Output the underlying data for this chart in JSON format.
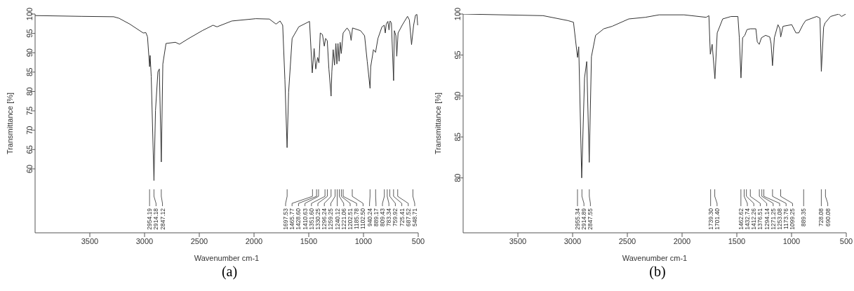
{
  "chart_data": [
    {
      "type": "line",
      "xlabel": "Wavenumber cm-1",
      "ylabel": "Transmittance [%]",
      "xlim": [
        4000,
        500
      ],
      "ylim": [
        43.5,
        100
      ],
      "xticks": [
        3500,
        3000,
        2500,
        2000,
        1500,
        1000,
        500
      ],
      "yticks": [
        60,
        65,
        70,
        75,
        80,
        85,
        90,
        95,
        100
      ],
      "color": "#333333",
      "x": [
        4000,
        3576,
        3282,
        3233,
        3135,
        3012,
        2988,
        2973,
        2954,
        2949,
        2939,
        2914,
        2900,
        2878,
        2865,
        2847,
        2833,
        2804,
        2718,
        2681,
        2596,
        2473,
        2375,
        2338,
        2203,
        1983,
        1860,
        1799,
        1762,
        1738,
        1718,
        1698,
        1684,
        1652,
        1591,
        1493,
        1468,
        1451,
        1436,
        1419,
        1407,
        1395,
        1375,
        1358,
        1346,
        1331,
        1316,
        1296,
        1289,
        1277,
        1265,
        1252,
        1243,
        1233,
        1223,
        1213,
        1203,
        1186,
        1150,
        1125,
        1113,
        1100,
        1027,
        990,
        966,
        940,
        934,
        909,
        890,
        868,
        831,
        811,
        801,
        792,
        777,
        767,
        757,
        745,
        725,
        718,
        704,
        696,
        684,
        647,
        598,
        581,
        561,
        542,
        525,
        512,
        505
      ],
      "values": [
        99.6,
        99.4,
        99.3,
        98.9,
        97.4,
        95.1,
        95.2,
        94.1,
        86.4,
        89.3,
        83.8,
        57,
        75.1,
        85.1,
        85.8,
        61.8,
        87.1,
        92.4,
        92.7,
        92.2,
        93.7,
        95.7,
        97.1,
        96.7,
        98.2,
        98.8,
        98.7,
        97.4,
        98.2,
        97.1,
        83.1,
        65.5,
        79.8,
        93.7,
        96.7,
        98.1,
        84.8,
        91.1,
        85.8,
        88.8,
        87.4,
        95.1,
        94.7,
        91.7,
        93.7,
        93.1,
        85.8,
        78.8,
        85.1,
        90.8,
        86.8,
        92.4,
        87.1,
        92.4,
        87.8,
        92.7,
        89.8,
        95.1,
        96.4,
        95.4,
        93.2,
        96.4,
        95.7,
        94.4,
        87.8,
        80.8,
        86.4,
        90.8,
        90.1,
        93.7,
        96.7,
        97.1,
        95.1,
        97.4,
        98.1,
        95.9,
        98.2,
        97.7,
        82.8,
        95.7,
        94.4,
        89.1,
        95.1,
        97.1,
        99.4,
        98.5,
        92.1,
        97.1,
        99.7,
        99.9,
        97.1
      ],
      "annotations": [
        {
          "text": "2954.19",
          "x": 2954.19
        },
        {
          "text": "2914.18",
          "x": 2914.18
        },
        {
          "text": "2847.12",
          "x": 2847.12
        },
        {
          "text": "1697.53",
          "x": 1697.53
        },
        {
          "text": "1465.77",
          "x": 1465.77
        },
        {
          "text": "1428.60",
          "x": 1428.6
        },
        {
          "text": "1410.63",
          "x": 1410.63
        },
        {
          "text": "1351.60",
          "x": 1351.6
        },
        {
          "text": "1330.25",
          "x": 1330.25
        },
        {
          "text": "1296.24",
          "x": 1296.24
        },
        {
          "text": "1259.25",
          "x": 1259.25
        },
        {
          "text": "1240.12",
          "x": 1240.12
        },
        {
          "text": "1221.06",
          "x": 1221.06
        },
        {
          "text": "1202.51",
          "x": 1202.51
        },
        {
          "text": "1185.78",
          "x": 1185.78
        },
        {
          "text": "1102.50",
          "x": 1102.5
        },
        {
          "text": "940.24",
          "x": 940.24
        },
        {
          "text": "889.17",
          "x": 889.17
        },
        {
          "text": "809.43",
          "x": 809.43
        },
        {
          "text": "783.34",
          "x": 783.34
        },
        {
          "text": "759.92",
          "x": 759.92
        },
        {
          "text": "725.41",
          "x": 725.41
        },
        {
          "text": "687.52",
          "x": 687.52
        },
        {
          "text": "548.71",
          "x": 548.71
        },
        "(a)"
      ]
    },
    {
      "type": "line",
      "xlabel": "Wavenumber cm-1",
      "ylabel": "Transmittance [%]",
      "xlim": [
        4000,
        500
      ],
      "ylim": [
        73.3,
        100
      ],
      "xticks": [
        3500,
        3000,
        2500,
        2000,
        1500,
        1000,
        500
      ],
      "yticks": [
        80,
        85,
        90,
        95,
        100
      ],
      "color": "#333333",
      "x": [
        4000,
        3270,
        3043,
        2992,
        2955,
        2944,
        2917,
        2891,
        2871,
        2848,
        2828,
        2790,
        2715,
        2639,
        2487,
        2336,
        2210,
        1982,
        1780,
        1755,
        1742,
        1725,
        1700,
        1679,
        1629,
        1553,
        1490,
        1477,
        1462,
        1447,
        1427,
        1407,
        1376,
        1326,
        1313,
        1295,
        1275,
        1237,
        1199,
        1187,
        1174,
        1157,
        1124,
        1106,
        1099,
        1078,
        998,
        960,
        934,
        896,
        871,
        770,
        740,
        728,
        707,
        694,
        644,
        568,
        543,
        505
      ],
      "values": [
        100,
        99.8,
        99.2,
        99,
        94.7,
        96,
        80,
        92.2,
        94.2,
        81.9,
        94.8,
        97.4,
        98.2,
        98.5,
        99.4,
        99.6,
        99.9,
        99.9,
        99.6,
        99.8,
        95.1,
        96.3,
        92.1,
        97.7,
        99.4,
        99.7,
        99.7,
        97.1,
        92.2,
        97.1,
        97.4,
        98.1,
        98.2,
        98.2,
        96.6,
        96.3,
        97.1,
        97.4,
        97.2,
        96.4,
        93.7,
        97.1,
        98.7,
        98.2,
        97.2,
        98.5,
        98.7,
        97.7,
        97.7,
        98.7,
        99.2,
        99.7,
        99.5,
        93,
        98.4,
        98.9,
        99.7,
        100,
        99.7,
        100
      ],
      "annotations": [
        {
          "text": "2955.34",
          "x": 2955.34
        },
        {
          "text": "2914.89",
          "x": 2914.89
        },
        {
          "text": "2847.55",
          "x": 2847.55
        },
        {
          "text": "1739.30",
          "x": 1739.3
        },
        {
          "text": "1701.40",
          "x": 1701.4
        },
        {
          "text": "1462.62",
          "x": 1462.62
        },
        {
          "text": "1432.74",
          "x": 1432.74
        },
        {
          "text": "1412.26",
          "x": 1412.26
        },
        {
          "text": "1376.51",
          "x": 1376.51
        },
        {
          "text": "1294.14",
          "x": 1294.14
        },
        {
          "text": "1271.25",
          "x": 1271.25
        },
        {
          "text": "1253.08",
          "x": 1253.08
        },
        {
          "text": "1173.76",
          "x": 1173.76
        },
        {
          "text": "1099.25",
          "x": 1099.25
        },
        {
          "text": "889.35",
          "x": 889.35
        },
        {
          "text": "728.08",
          "x": 728.08
        },
        {
          "text": "690.08",
          "x": 690.08
        },
        "(b)"
      ]
    }
  ]
}
